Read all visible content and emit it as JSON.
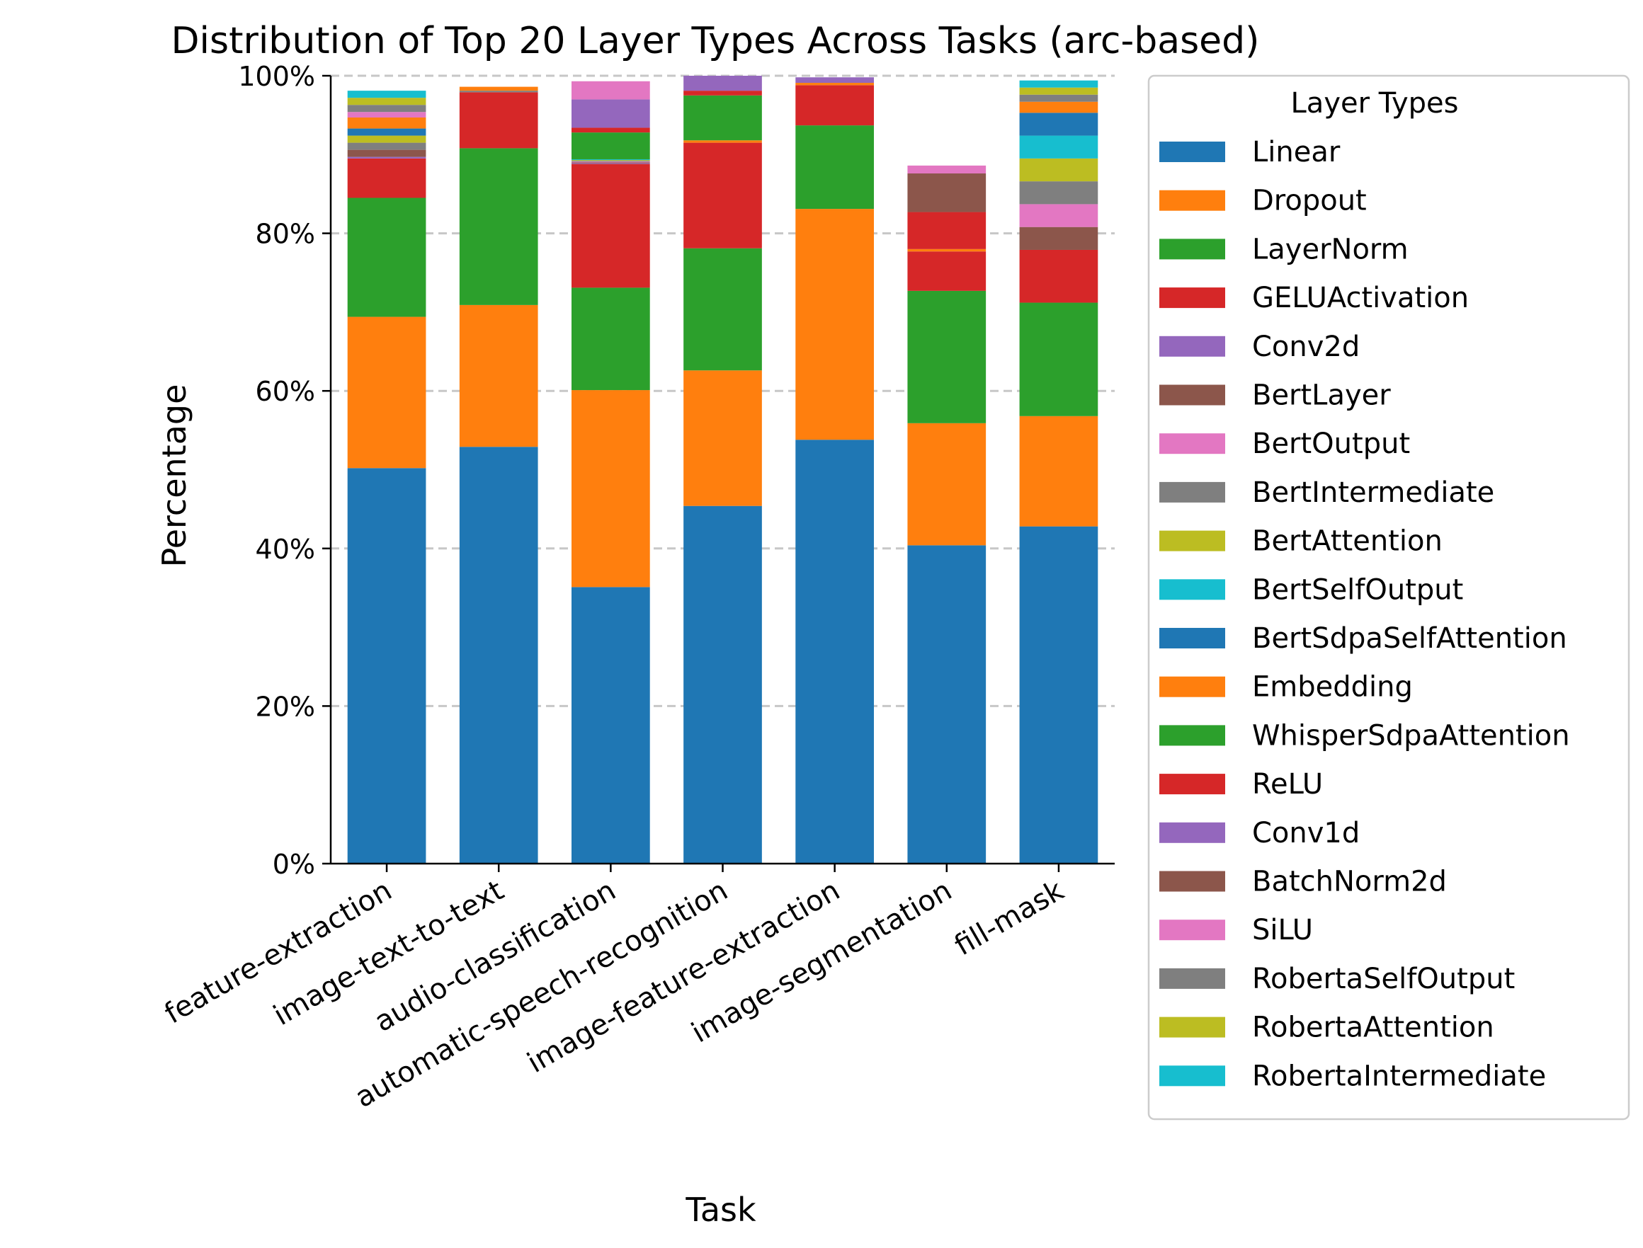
{
  "chart_data": {
    "type": "bar",
    "stacked": true,
    "title": "Distribution of Top 20 Layer Types Across Tasks (arc-based)",
    "xlabel": "Task",
    "ylabel": "Percentage",
    "ylim": [
      0,
      100
    ],
    "yticks": [
      0,
      20,
      40,
      60,
      80,
      100
    ],
    "ytick_labels": [
      "0%",
      "20%",
      "40%",
      "60%",
      "80%",
      "100%"
    ],
    "grid": "y-dashed",
    "legend_title": "Layer Types",
    "legend_position": "right-outside",
    "categories": [
      "feature-extraction",
      "image-text-to-text",
      "audio-classification",
      "automatic-speech-recognition",
      "image-feature-extraction",
      "image-segmentation",
      "fill-mask"
    ],
    "series": [
      {
        "name": "Linear",
        "color": "#1f77b4",
        "values": [
          50.2,
          52.9,
          35.1,
          45.4,
          53.8,
          40.4,
          42.8
        ]
      },
      {
        "name": "Dropout",
        "color": "#ff7f0e",
        "values": [
          19.2,
          18.0,
          25.0,
          17.2,
          29.3,
          15.5,
          14.0
        ]
      },
      {
        "name": "LayerNorm",
        "color": "#2ca02c",
        "values": [
          15.1,
          19.9,
          13.0,
          15.5,
          10.6,
          16.8,
          14.4
        ]
      },
      {
        "name": "GELUActivation",
        "color": "#d62728",
        "values": [
          5.0,
          7.1,
          15.7,
          13.4,
          5.1,
          5.0,
          6.7
        ]
      },
      {
        "name": "Conv2d",
        "color": "#9467bd",
        "values": [
          0.2,
          0.0,
          0.1,
          0.0,
          0.0,
          0.0,
          0.0
        ]
      },
      {
        "name": "BertLayer",
        "color": "#8c564b",
        "values": [
          0.9,
          0.0,
          0.1,
          0.0,
          0.0,
          0.0,
          2.9
        ]
      },
      {
        "name": "BertOutput",
        "color": "#e377c2",
        "values": [
          0.0,
          0.0,
          0.1,
          0.0,
          0.0,
          0.0,
          2.9
        ]
      },
      {
        "name": "BertIntermediate",
        "color": "#7f7f7f",
        "values": [
          0.9,
          0.2,
          0.1,
          0.0,
          0.0,
          0.0,
          2.9
        ]
      },
      {
        "name": "BertAttention",
        "color": "#bcbd22",
        "values": [
          0.9,
          0.0,
          0.1,
          0.0,
          0.0,
          0.0,
          2.9
        ]
      },
      {
        "name": "BertSelfOutput",
        "color": "#17becf",
        "values": [
          0.0,
          0.0,
          0.1,
          0.0,
          0.0,
          0.0,
          2.9
        ]
      },
      {
        "name": "BertSdpaSelfAttention",
        "color": "#1f77b4",
        "values": [
          0.9,
          0.0,
          0.0,
          0.0,
          0.0,
          0.0,
          2.9
        ]
      },
      {
        "name": "Embedding",
        "color": "#ff7f0e",
        "values": [
          1.4,
          0.5,
          0.0,
          0.3,
          0.3,
          0.3,
          1.4
        ]
      },
      {
        "name": "WhisperSdpaAttention",
        "color": "#2ca02c",
        "values": [
          0.0,
          0.0,
          3.4,
          5.7,
          0.0,
          0.0,
          0.0
        ]
      },
      {
        "name": "ReLU",
        "color": "#d62728",
        "values": [
          0.0,
          0.0,
          0.6,
          0.6,
          0.0,
          4.7,
          0.0
        ]
      },
      {
        "name": "Conv1d",
        "color": "#9467bd",
        "values": [
          0.0,
          0.0,
          3.6,
          1.9,
          0.7,
          0.0,
          0.0
        ]
      },
      {
        "name": "BatchNorm2d",
        "color": "#8c564b",
        "values": [
          0.0,
          0.0,
          0.0,
          0.0,
          0.0,
          4.9,
          0.0
        ]
      },
      {
        "name": "SiLU",
        "color": "#e377c2",
        "values": [
          0.7,
          0.0,
          2.3,
          0.0,
          0.0,
          1.0,
          0.0
        ]
      },
      {
        "name": "RobertaSelfOutput",
        "color": "#7f7f7f",
        "values": [
          0.9,
          0.0,
          0.0,
          0.0,
          0.0,
          0.0,
          0.9
        ]
      },
      {
        "name": "RobertaAttention",
        "color": "#bcbd22",
        "values": [
          0.9,
          0.0,
          0.0,
          0.0,
          0.0,
          0.0,
          0.9
        ]
      },
      {
        "name": "RobertaIntermediate",
        "color": "#17becf",
        "values": [
          0.9,
          0.0,
          0.0,
          0.0,
          0.0,
          0.0,
          0.9
        ]
      }
    ]
  }
}
